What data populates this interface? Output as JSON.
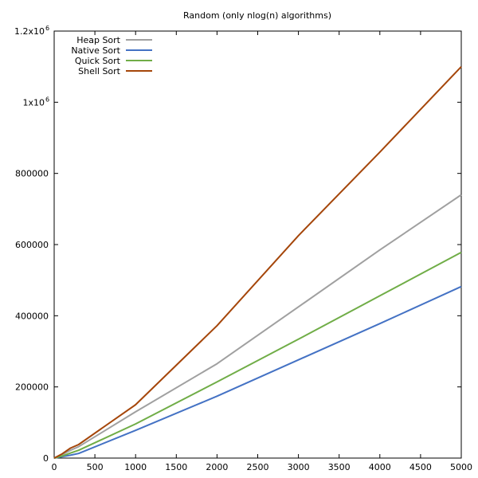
{
  "chart_data": {
    "type": "line",
    "title": "Random (only nlog(n) algorithms)",
    "xlabel": "",
    "ylabel": "",
    "xlim": [
      0,
      5000
    ],
    "ylim": [
      0,
      1200000
    ],
    "grid": false,
    "legend_position": "top-left",
    "x_ticks": [
      {
        "value": 0,
        "label": "0"
      },
      {
        "value": 500,
        "label": "500"
      },
      {
        "value": 1000,
        "label": "1000"
      },
      {
        "value": 1500,
        "label": "1500"
      },
      {
        "value": 2000,
        "label": "2000"
      },
      {
        "value": 2500,
        "label": "2500"
      },
      {
        "value": 3000,
        "label": "3000"
      },
      {
        "value": 3500,
        "label": "3500"
      },
      {
        "value": 4000,
        "label": "4000"
      },
      {
        "value": 4500,
        "label": "4500"
      },
      {
        "value": 5000,
        "label": "5000"
      }
    ],
    "y_ticks": [
      {
        "value": 0,
        "label": "0",
        "sup": ""
      },
      {
        "value": 200000,
        "label": "200000",
        "sup": ""
      },
      {
        "value": 400000,
        "label": "400000",
        "sup": ""
      },
      {
        "value": 600000,
        "label": "600000",
        "sup": ""
      },
      {
        "value": 800000,
        "label": "800000",
        "sup": ""
      },
      {
        "value": 1000000,
        "label": "1x10",
        "sup": "6"
      },
      {
        "value": 1200000,
        "label": "1.2x10",
        "sup": "6"
      }
    ],
    "series": [
      {
        "name": "Heap Sort",
        "color": "#a0a0a0",
        "x": [
          0,
          100,
          200,
          300,
          1000,
          2000,
          3000,
          4000,
          5000
        ],
        "y": [
          0,
          10000,
          22000,
          32000,
          130000,
          265000,
          425000,
          585000,
          740000
        ]
      },
      {
        "name": "Native Sort",
        "color": "#4472c4",
        "x": [
          0,
          100,
          200,
          300,
          1000,
          2000,
          3000,
          4000,
          5000
        ],
        "y": [
          0,
          4000,
          8000,
          13000,
          78000,
          174000,
          276000,
          378000,
          482000
        ]
      },
      {
        "name": "Quick Sort",
        "color": "#70ad47",
        "x": [
          0,
          100,
          200,
          300,
          1000,
          2000,
          3000,
          4000,
          5000
        ],
        "y": [
          0,
          6000,
          14000,
          22000,
          96000,
          214000,
          334000,
          456000,
          578000
        ]
      },
      {
        "name": "Shell Sort",
        "color": "#a5460a",
        "x": [
          0,
          100,
          200,
          300,
          1000,
          2000,
          3000,
          4000,
          5000
        ],
        "y": [
          0,
          12000,
          28000,
          38000,
          150000,
          372000,
          625000,
          860000,
          1100000
        ]
      }
    ]
  }
}
